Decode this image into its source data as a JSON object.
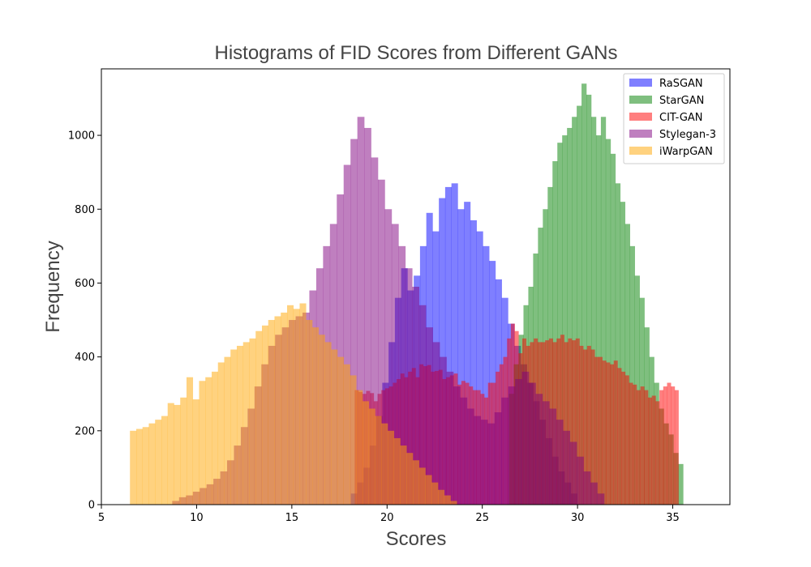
{
  "chart_data": {
    "type": "bar",
    "title": "Histograms of FID Scores from Different GANs",
    "xlabel": "Scores",
    "ylabel": "Frequency",
    "xlim": [
      5,
      38
    ],
    "ylim": [
      0,
      1180
    ],
    "xticks": [
      5,
      10,
      15,
      20,
      25,
      30,
      35
    ],
    "yticks": [
      0,
      200,
      400,
      600,
      800,
      1000
    ],
    "legend_position": "top-right",
    "grid": false,
    "series": [
      {
        "name": "RaSGAN",
        "color": "#0000ff",
        "opacity": 0.5,
        "bin_start": 18.1,
        "bin_width": 0.33,
        "counts": [
          30,
          60,
          100,
          160,
          240,
          330,
          440,
          560,
          640,
          580,
          620,
          700,
          790,
          740,
          830,
          860,
          870,
          800,
          820,
          770,
          740,
          700,
          660,
          610,
          560,
          490,
          430,
          380,
          330,
          280,
          230,
          180,
          130,
          90,
          60,
          30
        ]
      },
      {
        "name": "StarGAN",
        "color": "#008000",
        "opacity": 0.5,
        "bin_start": 26.4,
        "bin_width": 0.254,
        "counts": [
          300,
          380,
          460,
          540,
          590,
          680,
          750,
          800,
          860,
          930,
          980,
          1000,
          1020,
          1050,
          1080,
          1140,
          1110,
          1050,
          1000,
          1050,
          990,
          950,
          870,
          820,
          760,
          700,
          620,
          560,
          480,
          400,
          330,
          260,
          220,
          190,
          140,
          110
        ]
      },
      {
        "name": "CIT-GAN",
        "color": "#ff0000",
        "opacity": 0.5,
        "bin_start": 18.3,
        "bin_width": 0.2,
        "counts": [
          310,
          305,
          300,
          308,
          302,
          280,
          300,
          310,
          315,
          320,
          330,
          340,
          355,
          345,
          360,
          370,
          345,
          380,
          375,
          378,
          360,
          362,
          365,
          340,
          345,
          350,
          355,
          325,
          335,
          330,
          320,
          310,
          310,
          300,
          290,
          330,
          330,
          360,
          380,
          400,
          450,
          490,
          470,
          410,
          450,
          430,
          440,
          450,
          440,
          440,
          445,
          450,
          440,
          450,
          460,
          440,
          450,
          445,
          450,
          430,
          420,
          430,
          420,
          400,
          400,
          390,
          385,
          380,
          390,
          370,
          360,
          350,
          330,
          325,
          310,
          320,
          310,
          290,
          295,
          280,
          310,
          320,
          330,
          320,
          310
        ]
      },
      {
        "name": "Stylegan-3",
        "color": "#800080",
        "opacity": 0.5,
        "bin_start": 8.0,
        "bin_width": 0.36,
        "counts": [
          0,
          0,
          10,
          20,
          25,
          35,
          45,
          55,
          70,
          90,
          120,
          160,
          210,
          260,
          320,
          380,
          430,
          460,
          480,
          500,
          510,
          520,
          580,
          640,
          700,
          760,
          840,
          920,
          990,
          1050,
          1020,
          940,
          880,
          800,
          760,
          700,
          640,
          590,
          540,
          480,
          440,
          400,
          360,
          320,
          290,
          260,
          240,
          230,
          220,
          250,
          290,
          320,
          340,
          360,
          330,
          300,
          280,
          260,
          230,
          200,
          170,
          130,
          90,
          60,
          30
        ]
      },
      {
        "name": "iWarpGAN",
        "color": "#ffa500",
        "opacity": 0.5,
        "bin_start": 6.5,
        "bin_width": 0.33,
        "counts": [
          200,
          205,
          210,
          220,
          230,
          240,
          275,
          270,
          290,
          345,
          285,
          335,
          345,
          360,
          385,
          400,
          420,
          430,
          440,
          450,
          470,
          485,
          500,
          510,
          520,
          540,
          530,
          545,
          500,
          480,
          460,
          440,
          420,
          400,
          380,
          350,
          310,
          280,
          260,
          240,
          220,
          200,
          180,
          160,
          140,
          120,
          100,
          80,
          60,
          40,
          25,
          10
        ]
      }
    ]
  }
}
